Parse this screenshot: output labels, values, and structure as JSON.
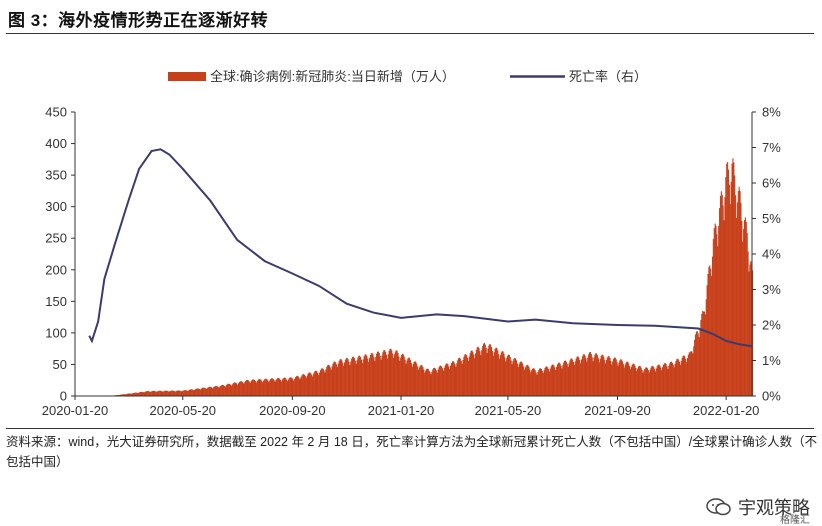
{
  "header": {
    "title": "图 3：海外疫情形势正在逐渐好转"
  },
  "footer": {
    "note": "资料来源：wind，光大证券研究所，数据截至 2022 年 2 月 18 日，死亡率计算方法为全球新冠累计死亡人数（不包括中国）/全球累计确诊人数（不包括中国）"
  },
  "watermark": {
    "text": "宇观策略",
    "sub": "格隆汇",
    "icon": "wechat-icon"
  },
  "colors": {
    "bar": "#C8401A",
    "line": "#3C3B6E",
    "axis": "#333333"
  },
  "chart_data": {
    "type": "bar+line",
    "legend": [
      "全球:确诊病例:新冠肺炎:当日新增（万人）",
      "死亡率（右）"
    ],
    "legend_position": "top",
    "grid": false,
    "x_ticks": [
      "2020-01-20",
      "2020-05-20",
      "2020-09-20",
      "2021-01-20",
      "2021-05-20",
      "2021-09-20",
      "2022-01-20"
    ],
    "x_range": [
      "2020-01-20",
      "2022-02-18"
    ],
    "y_left": {
      "min": 0,
      "max": 450,
      "ticks": [
        "0",
        "50",
        "100",
        "150",
        "200",
        "250",
        "300",
        "350",
        "400",
        "450"
      ]
    },
    "y_right": {
      "min": 0,
      "max": 0.08,
      "ticks": [
        "0%",
        "1%",
        "2%",
        "3%",
        "4%",
        "5%",
        "6%",
        "7%",
        "8%"
      ]
    },
    "series": [
      {
        "name": "全球:确诊病例:新冠肺炎:当日新增（万人）",
        "kind": "bar",
        "points": [
          [
            "2020-01-20",
            0
          ],
          [
            "2020-03-01",
            0.5
          ],
          [
            "2020-03-20",
            4
          ],
          [
            "2020-04-10",
            8
          ],
          [
            "2020-05-20",
            9
          ],
          [
            "2020-07-01",
            17
          ],
          [
            "2020-08-01",
            26
          ],
          [
            "2020-09-20",
            30
          ],
          [
            "2020-10-20",
            42
          ],
          [
            "2020-11-10",
            58
          ],
          [
            "2020-12-10",
            66
          ],
          [
            "2021-01-10",
            76
          ],
          [
            "2021-01-20",
            68
          ],
          [
            "2021-02-20",
            42
          ],
          [
            "2021-03-20",
            56
          ],
          [
            "2021-04-25",
            86
          ],
          [
            "2021-05-20",
            66
          ],
          [
            "2021-06-20",
            42
          ],
          [
            "2021-07-20",
            55
          ],
          [
            "2021-08-20",
            70
          ],
          [
            "2021-09-20",
            60
          ],
          [
            "2021-10-20",
            45
          ],
          [
            "2021-11-20",
            55
          ],
          [
            "2021-12-10",
            70
          ],
          [
            "2021-12-25",
            140
          ],
          [
            "2022-01-05",
            260
          ],
          [
            "2022-01-20",
            370
          ],
          [
            "2022-01-26",
            385
          ],
          [
            "2022-02-05",
            320
          ],
          [
            "2022-02-12",
            270
          ],
          [
            "2022-02-18",
            200
          ]
        ]
      },
      {
        "name": "死亡率（右）",
        "kind": "line",
        "points": [
          [
            "2020-02-05",
            0.017
          ],
          [
            "2020-02-08",
            0.0155
          ],
          [
            "2020-02-15",
            0.021
          ],
          [
            "2020-02-22",
            0.033
          ],
          [
            "2020-03-05",
            0.043
          ],
          [
            "2020-03-20",
            0.055
          ],
          [
            "2020-04-01",
            0.064
          ],
          [
            "2020-04-15",
            0.069
          ],
          [
            "2020-04-25",
            0.0695
          ],
          [
            "2020-05-05",
            0.068
          ],
          [
            "2020-05-20",
            0.064
          ],
          [
            "2020-06-20",
            0.055
          ],
          [
            "2020-07-20",
            0.044
          ],
          [
            "2020-08-20",
            0.038
          ],
          [
            "2020-09-20",
            0.0345
          ],
          [
            "2020-10-20",
            0.031
          ],
          [
            "2020-11-20",
            0.026
          ],
          [
            "2020-12-20",
            0.0235
          ],
          [
            "2021-01-20",
            0.022
          ],
          [
            "2021-03-01",
            0.023
          ],
          [
            "2021-04-01",
            0.0225
          ],
          [
            "2021-05-20",
            0.021
          ],
          [
            "2021-06-20",
            0.0215
          ],
          [
            "2021-08-01",
            0.0205
          ],
          [
            "2021-09-20",
            0.02
          ],
          [
            "2021-11-01",
            0.0198
          ],
          [
            "2021-12-20",
            0.019
          ],
          [
            "2022-01-05",
            0.0175
          ],
          [
            "2022-01-20",
            0.0155
          ],
          [
            "2022-02-05",
            0.0145
          ],
          [
            "2022-02-18",
            0.014
          ]
        ]
      }
    ]
  }
}
